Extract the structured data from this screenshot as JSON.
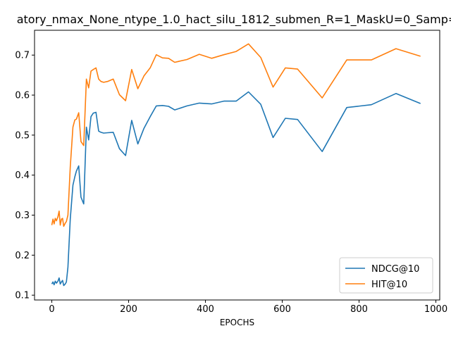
{
  "chart_data": {
    "type": "line",
    "title": "atory_nmax_None_ntype_1.0_hact_silu_1812_submen_R=1_MaskU=0_Samp=",
    "xlabel": "EPOCHS",
    "ylabel": "",
    "xlim": [
      -45,
      1010
    ],
    "ylim": [
      0.088,
      0.762
    ],
    "xticks": [
      0,
      200,
      400,
      600,
      800,
      1000
    ],
    "xtick_labels": [
      "0",
      "200",
      "400",
      "600",
      "800",
      "1000"
    ],
    "yticks": [
      0.1,
      0.2,
      0.3,
      0.4,
      0.5,
      0.6,
      0.7
    ],
    "ytick_labels": [
      "0.1",
      "0.2",
      "0.3",
      "0.4",
      "0.5",
      "0.6",
      "0.7"
    ],
    "grid": false,
    "legend_position": "lower-right",
    "series": [
      {
        "name": "NDCG@10",
        "color": "#1f77b4",
        "x": [
          0,
          3,
          6,
          9,
          12,
          16,
          19,
          22,
          25,
          28,
          31,
          35,
          38,
          42,
          48,
          55,
          60,
          64,
          70,
          76,
          83,
          90,
          96,
          102,
          108,
          115,
          122,
          128,
          135,
          145,
          160,
          176,
          192,
          208,
          224,
          240,
          256,
          272,
          288,
          304,
          320,
          352,
          384,
          416,
          448,
          480,
          512,
          544,
          576,
          608,
          640,
          704,
          768,
          832,
          896,
          960
        ],
        "y": [
          0.128,
          0.133,
          0.126,
          0.135,
          0.13,
          0.135,
          0.143,
          0.128,
          0.133,
          0.137,
          0.124,
          0.128,
          0.133,
          0.17,
          0.29,
          0.375,
          0.396,
          0.41,
          0.423,
          0.345,
          0.328,
          0.52,
          0.488,
          0.546,
          0.555,
          0.557,
          0.51,
          0.507,
          0.505,
          0.506,
          0.507,
          0.466,
          0.449,
          0.537,
          0.478,
          0.517,
          0.546,
          0.573,
          0.574,
          0.572,
          0.563,
          0.573,
          0.58,
          0.578,
          0.585,
          0.585,
          0.608,
          0.577,
          0.494,
          0.542,
          0.539,
          0.459,
          0.569,
          0.576,
          0.604,
          0.579
        ]
      },
      {
        "name": "HIT@10",
        "color": "#ff7f0e",
        "x": [
          0,
          3,
          6,
          9,
          12,
          16,
          19,
          22,
          25,
          28,
          31,
          35,
          38,
          42,
          48,
          55,
          60,
          64,
          70,
          76,
          83,
          90,
          96,
          102,
          108,
          115,
          122,
          128,
          135,
          145,
          160,
          176,
          192,
          208,
          224,
          240,
          256,
          272,
          288,
          304,
          320,
          352,
          384,
          416,
          448,
          480,
          512,
          544,
          576,
          608,
          640,
          704,
          768,
          832,
          896,
          960
        ],
        "y": [
          0.275,
          0.29,
          0.278,
          0.292,
          0.286,
          0.296,
          0.31,
          0.275,
          0.29,
          0.292,
          0.272,
          0.28,
          0.284,
          0.3,
          0.42,
          0.52,
          0.538,
          0.54,
          0.556,
          0.484,
          0.474,
          0.64,
          0.618,
          0.66,
          0.664,
          0.668,
          0.64,
          0.634,
          0.632,
          0.634,
          0.64,
          0.601,
          0.586,
          0.664,
          0.616,
          0.648,
          0.668,
          0.701,
          0.693,
          0.692,
          0.682,
          0.689,
          0.702,
          0.692,
          0.701,
          0.709,
          0.728,
          0.694,
          0.62,
          0.668,
          0.665,
          0.593,
          0.688,
          0.688,
          0.716,
          0.697
        ]
      }
    ]
  }
}
